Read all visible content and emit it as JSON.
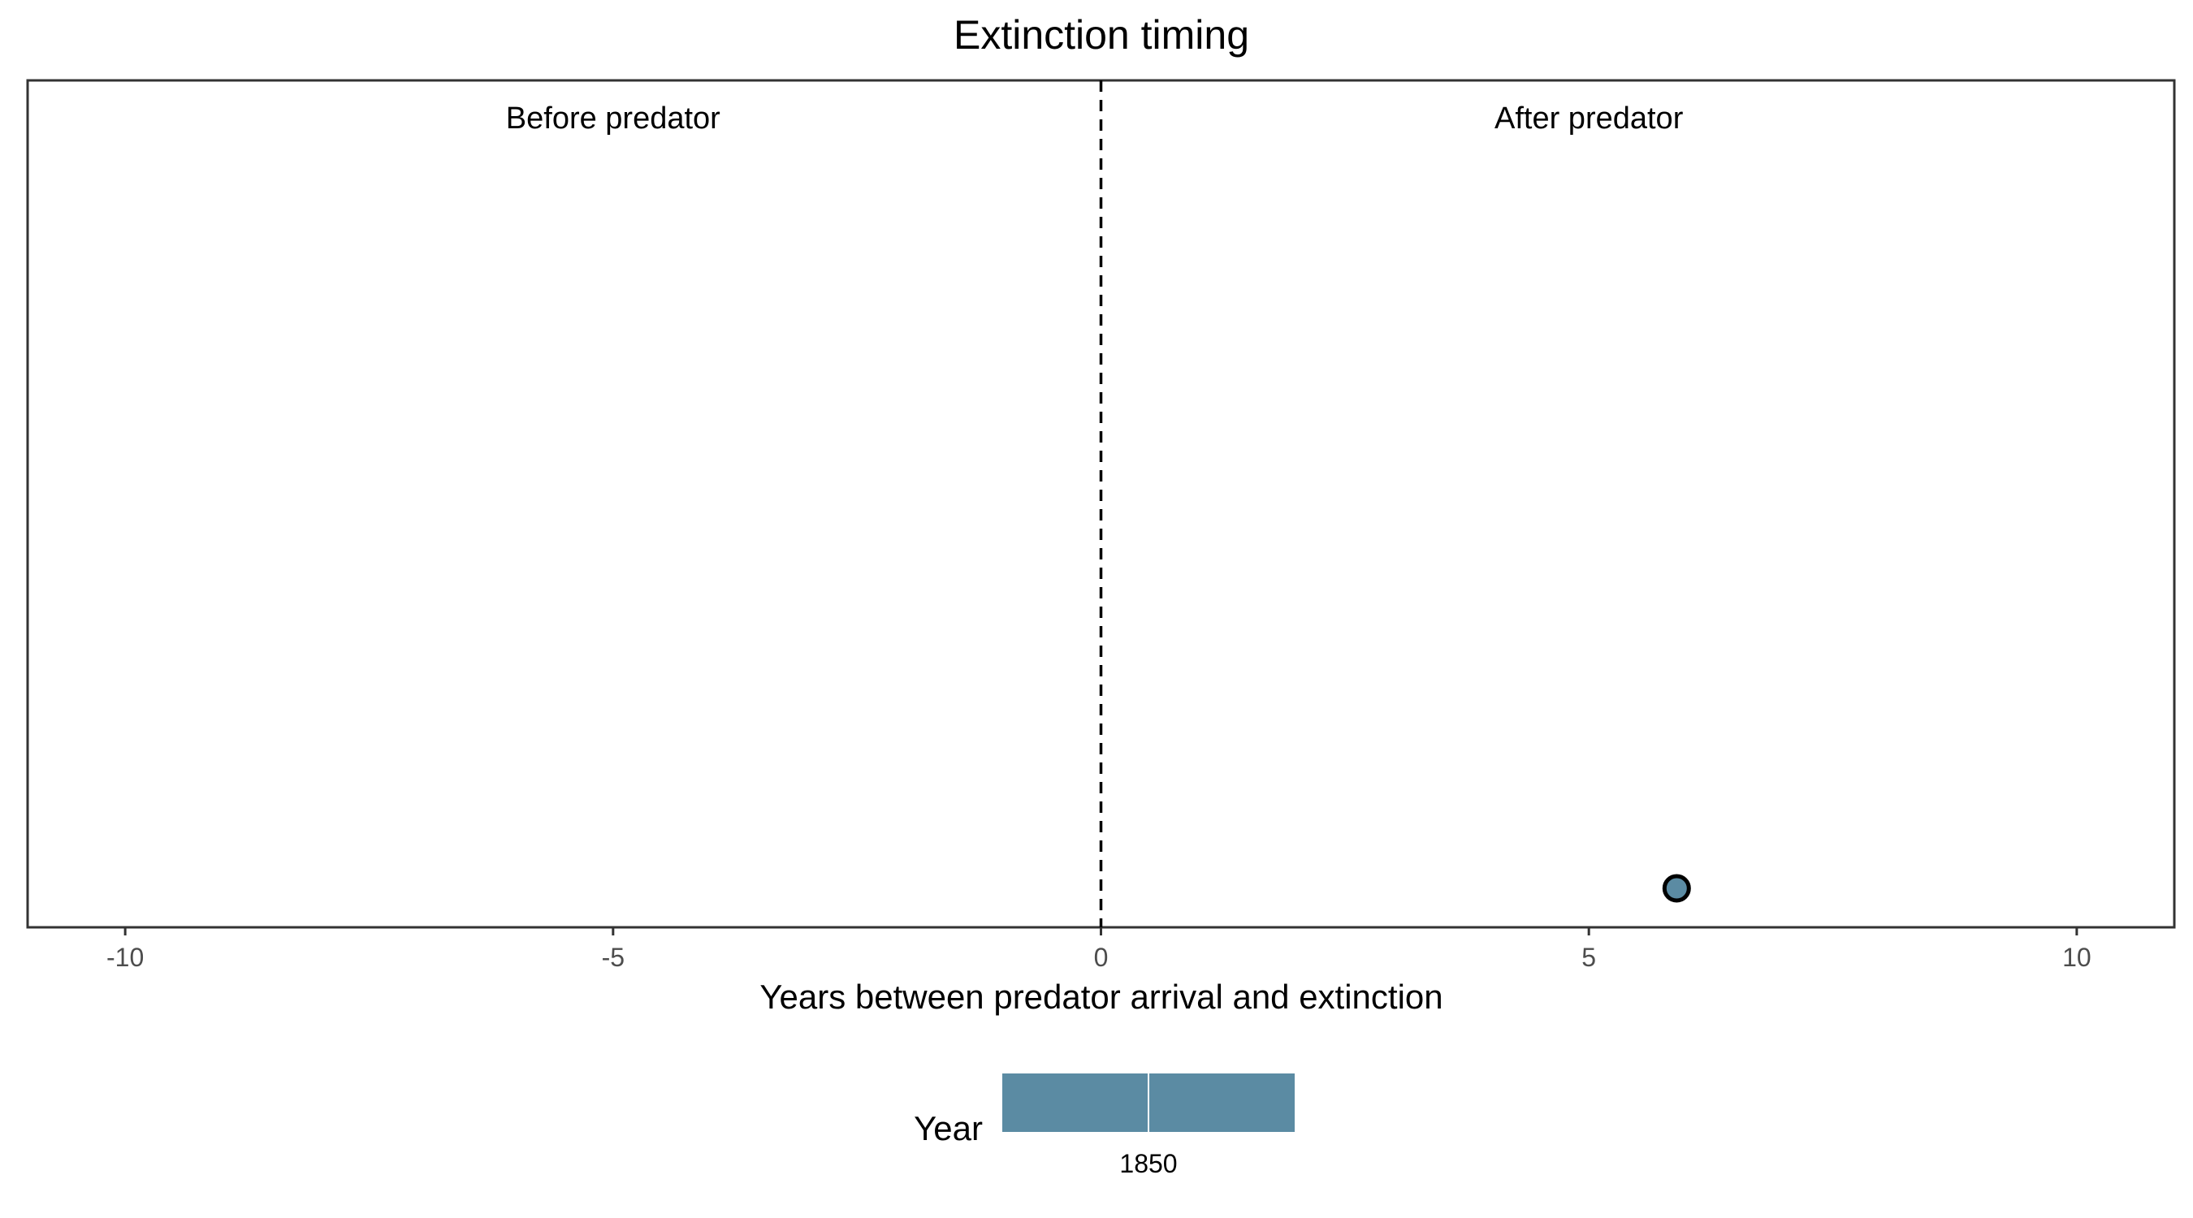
{
  "chart_data": {
    "type": "scatter",
    "title": "Extinction timing",
    "xlabel": "Years between predator arrival and extinction",
    "ylabel": "",
    "xlim": [
      -11,
      11
    ],
    "x_ticks": [
      -10,
      -5,
      0,
      5,
      10
    ],
    "x_tick_labels": [
      "-10",
      "-5",
      "0",
      "5",
      "10"
    ],
    "grid": false,
    "reference_line": {
      "x": 0,
      "style": "dashed"
    },
    "annotations": [
      {
        "text": "Before predator",
        "x": -5
      },
      {
        "text": "After predator",
        "x": 5
      }
    ],
    "points": [
      {
        "x": 5.9,
        "year": 1850
      }
    ],
    "legend": {
      "title": "Year",
      "position": "bottom",
      "tick_labels": [
        "1850"
      ],
      "color": "#5b8ba3"
    },
    "point_color": "#5b8ba3"
  }
}
